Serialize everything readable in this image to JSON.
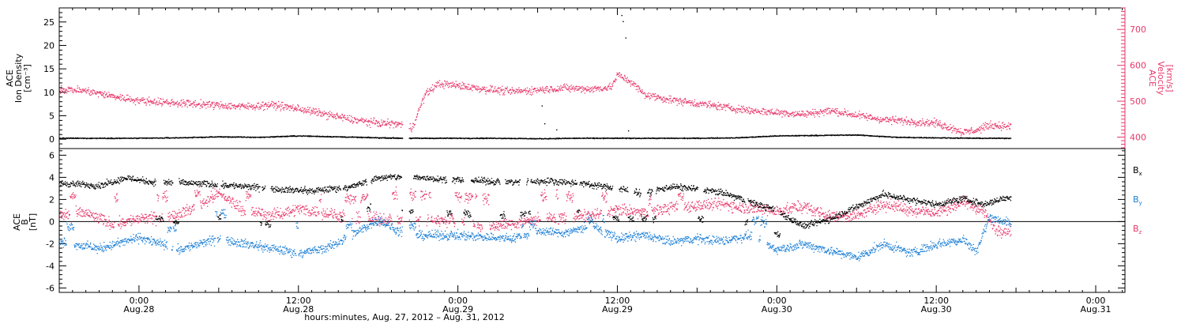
{
  "figure": {
    "xlabel": "hours:minutes, Aug. 27, 2012 – Aug. 31, 2012",
    "x_ticks": [
      {
        "hour": 0,
        "time": "0:00",
        "day": "Aug.28"
      },
      {
        "hour": 12,
        "time": "12:00",
        "day": "Aug.28"
      },
      {
        "hour": 24,
        "time": "0:00",
        "day": "Aug.29"
      },
      {
        "hour": 36,
        "time": "12:00",
        "day": "Aug.29"
      },
      {
        "hour": 48,
        "time": "0:00",
        "day": "Aug.30"
      },
      {
        "hour": 60,
        "time": "12:00",
        "day": "Aug.30"
      },
      {
        "hour": 72,
        "time": "0:00",
        "day": "Aug.31"
      }
    ],
    "colors": {
      "black": "#000000",
      "pink": "#e8386a",
      "blue": "#1b7fd6"
    }
  },
  "chart_data": [
    {
      "type": "scatter",
      "title": "",
      "x_units": "hours since 2012-08-28 00:00 UT",
      "xlim": [
        -6,
        74.2
      ],
      "ylabel_left": [
        "ACE",
        "Ion Density",
        "[cm⁻³]"
      ],
      "ylabel_right": [
        "ACE",
        "Velocity",
        "[km/s]"
      ],
      "ylim_left": [
        -2,
        28
      ],
      "yticks_left": [
        0,
        5,
        10,
        15,
        20,
        25
      ],
      "ylim_right": [
        368,
        760
      ],
      "yticks_right": [
        400,
        500,
        600,
        700
      ],
      "series": [
        {
          "name": "Ion Density",
          "axis": "left",
          "color": "#000000",
          "points": [
            [
              -6,
              0.3
            ],
            [
              -3,
              0.3
            ],
            [
              0,
              0.3
            ],
            [
              3,
              0.4
            ],
            [
              6,
              0.6
            ],
            [
              9,
              0.5
            ],
            [
              12,
              0.8
            ],
            [
              15,
              0.6
            ],
            [
              18,
              0.4
            ],
            [
              20,
              0.3
            ],
            [
              24,
              0.3
            ],
            [
              27,
              0.3
            ],
            [
              30,
              0.2
            ],
            [
              33,
              0.3
            ],
            [
              36,
              0.3
            ],
            [
              39,
              0.3
            ],
            [
              42,
              0.3
            ],
            [
              45,
              0.4
            ],
            [
              48,
              0.8
            ],
            [
              51,
              0.9
            ],
            [
              54,
              1.0
            ],
            [
              57,
              0.5
            ],
            [
              60,
              0.4
            ],
            [
              63,
              0.3
            ],
            [
              65.6,
              0.3
            ]
          ],
          "spikes": [
            [
              30.3,
              7.2
            ],
            [
              30.5,
              3.4
            ],
            [
              31.4,
              2.1
            ],
            [
              36.3,
              26.5
            ],
            [
              36.4,
              25.2
            ],
            [
              36.6,
              21.7
            ],
            [
              36.8,
              1.9
            ]
          ]
        },
        {
          "name": "Velocity",
          "axis": "right",
          "color": "#e8386a",
          "points": [
            [
              -6,
              535
            ],
            [
              -4,
              530
            ],
            [
              -2,
              515
            ],
            [
              0,
              503
            ],
            [
              2,
              498
            ],
            [
              4,
              494
            ],
            [
              6,
              490
            ],
            [
              8,
              486
            ],
            [
              10,
              491
            ],
            [
              12,
              480
            ],
            [
              14,
              465
            ],
            [
              16,
              450
            ],
            [
              18,
              440
            ],
            [
              19.5,
              438
            ],
            [
              20.5,
              425
            ],
            [
              21.5,
              520
            ],
            [
              22.5,
              550
            ],
            [
              24,
              545
            ],
            [
              26,
              535
            ],
            [
              28,
              528
            ],
            [
              30,
              533
            ],
            [
              32,
              538
            ],
            [
              34,
              535
            ],
            [
              35.5,
              540
            ],
            [
              36,
              575
            ],
            [
              37,
              555
            ],
            [
              38,
              520
            ],
            [
              40,
              505
            ],
            [
              42,
              495
            ],
            [
              44,
              485
            ],
            [
              46,
              475
            ],
            [
              48,
              470
            ],
            [
              50,
              465
            ],
            [
              52,
              475
            ],
            [
              54,
              462
            ],
            [
              56,
              450
            ],
            [
              58,
              445
            ],
            [
              60,
              440
            ],
            [
              61,
              428
            ],
            [
              62,
              415
            ],
            [
              63,
              420
            ],
            [
              64,
              435
            ],
            [
              65.6,
              430
            ]
          ]
        }
      ]
    },
    {
      "type": "scatter",
      "title": "",
      "x_units": "hours since 2012-08-28 00:00 UT",
      "xlim": [
        -6,
        74.2
      ],
      "ylabel": [
        "ACE",
        "B",
        "[nT]"
      ],
      "ylim": [
        -6.4,
        6.6
      ],
      "yticks": [
        -6,
        -4,
        -2,
        0,
        2,
        4,
        6
      ],
      "series": [
        {
          "name": "Bx",
          "label_main": "B",
          "label_sub": "x",
          "color": "#000000",
          "points": [
            [
              -6,
              3.5
            ],
            [
              -3,
              3.3
            ],
            [
              -1,
              4.0
            ],
            [
              1,
              3.6
            ],
            [
              4,
              3.5
            ],
            [
              7,
              3.3
            ],
            [
              10,
              3.0
            ],
            [
              13,
              2.8
            ],
            [
              16,
              3.2
            ],
            [
              18,
              4.0
            ],
            [
              20,
              4.1
            ],
            [
              24,
              3.8
            ],
            [
              28,
              3.6
            ],
            [
              31,
              3.7
            ],
            [
              34,
              3.4
            ],
            [
              36,
              3.0
            ],
            [
              38,
              2.6
            ],
            [
              40,
              3.2
            ],
            [
              42,
              3.0
            ],
            [
              44,
              2.6
            ],
            [
              46,
              1.8
            ],
            [
              48,
              1.0
            ],
            [
              50,
              -0.4
            ],
            [
              52,
              0.3
            ],
            [
              54,
              1.4
            ],
            [
              56,
              2.5
            ],
            [
              58,
              2.0
            ],
            [
              60,
              1.6
            ],
            [
              62,
              2.1
            ],
            [
              63.5,
              1.6
            ],
            [
              65.6,
              2.3
            ]
          ]
        },
        {
          "name": "By",
          "label_main": "B",
          "label_sub": "y",
          "color": "#1b7fd6",
          "points": [
            [
              -6,
              -1.8
            ],
            [
              -3,
              -2.4
            ],
            [
              0,
              -1.4
            ],
            [
              3,
              -2.5
            ],
            [
              6,
              -1.5
            ],
            [
              9,
              -2.2
            ],
            [
              12,
              -2.8
            ],
            [
              14,
              -2.4
            ],
            [
              16,
              -1.2
            ],
            [
              18,
              0.2
            ],
            [
              20,
              -1.2
            ],
            [
              24,
              -1.2
            ],
            [
              28,
              -1.5
            ],
            [
              30,
              -0.8
            ],
            [
              32,
              -1.0
            ],
            [
              34,
              -0.3
            ],
            [
              36,
              -1.5
            ],
            [
              38,
              -1.2
            ],
            [
              40,
              -1.8
            ],
            [
              42,
              -1.5
            ],
            [
              44,
              -1.7
            ],
            [
              46,
              -1.2
            ],
            [
              48,
              -2.5
            ],
            [
              50,
              -2.0
            ],
            [
              52,
              -2.6
            ],
            [
              54,
              -3.2
            ],
            [
              56,
              -2.0
            ],
            [
              58,
              -2.8
            ],
            [
              60,
              -2.0
            ],
            [
              62,
              -1.6
            ],
            [
              63,
              -2.6
            ],
            [
              64,
              0.5
            ],
            [
              65.6,
              -0.2
            ]
          ]
        },
        {
          "name": "Bz",
          "label_main": "B",
          "label_sub": "z",
          "color": "#e8386a",
          "points": [
            [
              -6,
              0.6
            ],
            [
              -4,
              0.8
            ],
            [
              -2,
              -0.2
            ],
            [
              0,
              0.3
            ],
            [
              2,
              0.4
            ],
            [
              4,
              1.2
            ],
            [
              6,
              2.6
            ],
            [
              8,
              1.0
            ],
            [
              10,
              0.6
            ],
            [
              12,
              1.2
            ],
            [
              14,
              0.8
            ],
            [
              16,
              0.3
            ],
            [
              18,
              0.3
            ],
            [
              20,
              0.1
            ],
            [
              24,
              0.2
            ],
            [
              26,
              -0.4
            ],
            [
              28,
              -0.2
            ],
            [
              30,
              0.3
            ],
            [
              32,
              0.4
            ],
            [
              34,
              0.6
            ],
            [
              36,
              1.1
            ],
            [
              38,
              0.8
            ],
            [
              40,
              1.3
            ],
            [
              42,
              1.5
            ],
            [
              44,
              1.6
            ],
            [
              46,
              1.2
            ],
            [
              48,
              1.0
            ],
            [
              50,
              1.4
            ],
            [
              52,
              0.5
            ],
            [
              54,
              0.6
            ],
            [
              56,
              1.6
            ],
            [
              58,
              1.1
            ],
            [
              60,
              0.8
            ],
            [
              62,
              1.8
            ],
            [
              63.5,
              1.0
            ],
            [
              64.5,
              -0.8
            ],
            [
              65.6,
              -0.7
            ]
          ]
        }
      ]
    }
  ]
}
